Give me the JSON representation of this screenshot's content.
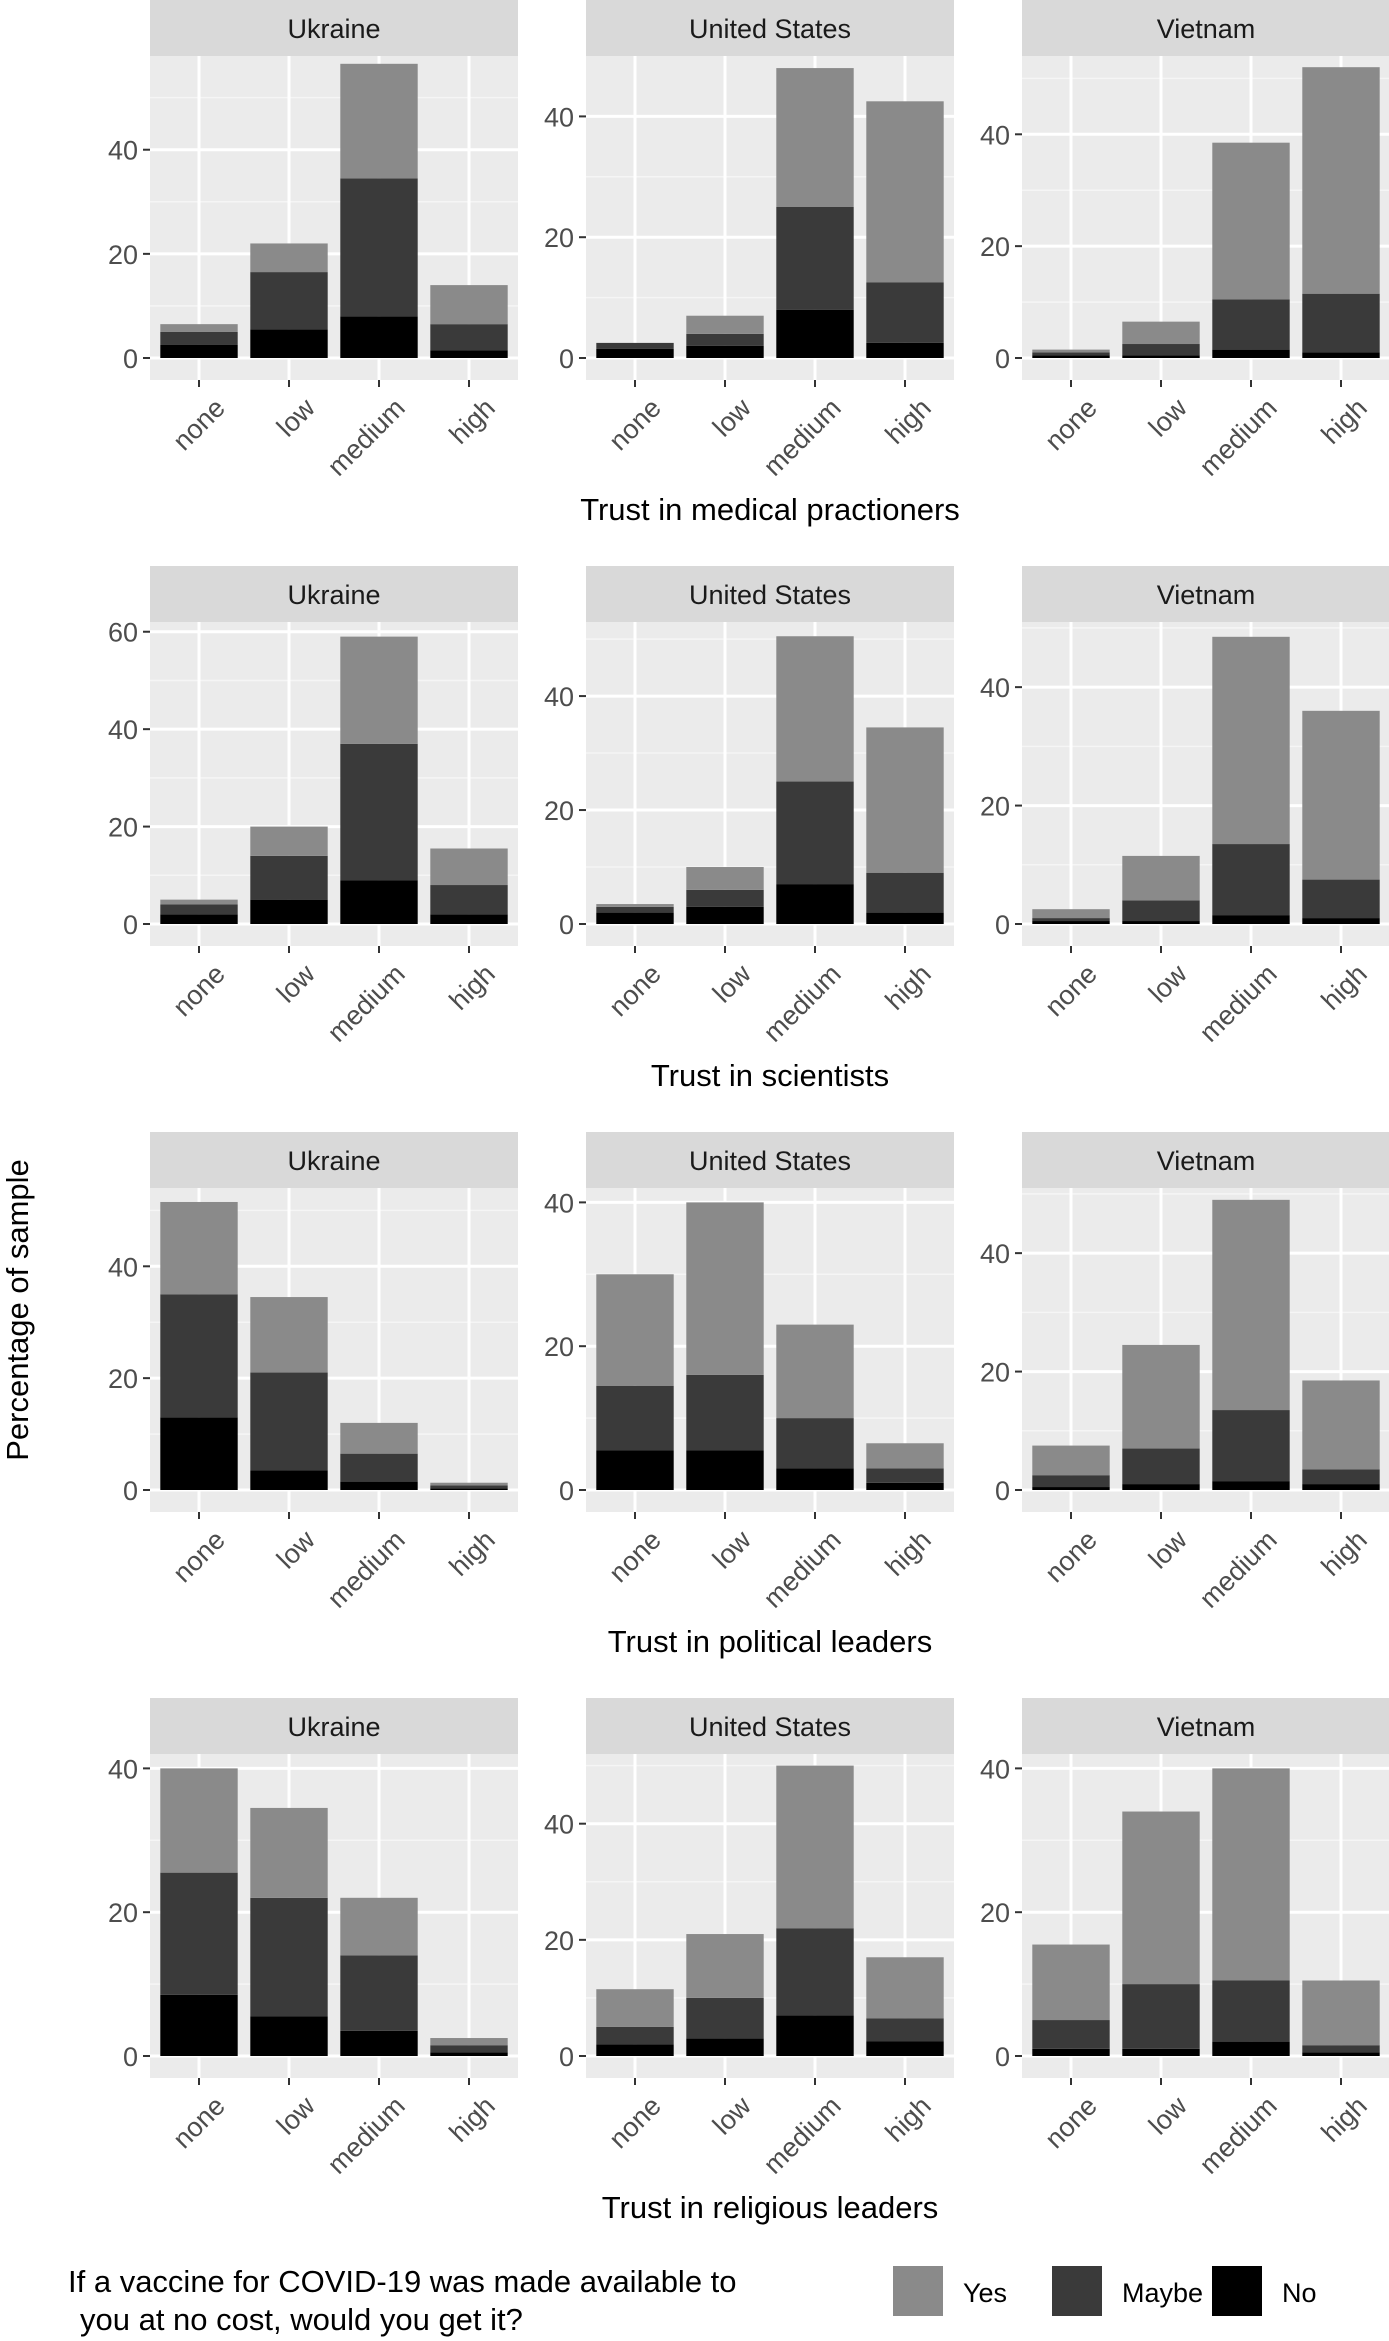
{
  "figure": {
    "ylabel": "Percentage of sample",
    "legend": {
      "title_line1": "If a vaccine for COVID-19 was made available to",
      "title_line2": "you at no cost, would you get it?",
      "position": "bottom",
      "items": [
        {
          "key": "yes",
          "label": "Yes",
          "color": "#8a8a8a"
        },
        {
          "key": "maybe",
          "label": "Maybe",
          "color": "#3a3a3a"
        },
        {
          "key": "no",
          "label": "No",
          "color": "#000000"
        }
      ]
    }
  },
  "chart_data": [
    {
      "type": "bar",
      "stacked": true,
      "xlabel": "Trust in medical practioners",
      "categories": [
        "none",
        "low",
        "medium",
        "high"
      ],
      "facets": [
        {
          "country": "Ukraine",
          "ylim": [
            0,
            58
          ],
          "yticks": [
            0,
            20,
            40
          ],
          "no": [
            2.5,
            5.5,
            8,
            1.5
          ],
          "maybe": [
            2.5,
            11,
            26.5,
            5
          ],
          "yes": [
            1.5,
            5.5,
            22,
            7.5
          ]
        },
        {
          "country": "United States",
          "ylim": [
            0,
            50
          ],
          "yticks": [
            0,
            20,
            40
          ],
          "no": [
            1.5,
            2,
            8,
            2.5
          ],
          "maybe": [
            1,
            2,
            17,
            10
          ],
          "yes": [
            0,
            3,
            23,
            30
          ]
        },
        {
          "country": "Vietnam",
          "ylim": [
            0,
            54
          ],
          "yticks": [
            0,
            20,
            40
          ],
          "no": [
            0.5,
            0.5,
            1.5,
            1
          ],
          "maybe": [
            0.5,
            2,
            9,
            10.5
          ],
          "yes": [
            0.5,
            4,
            28,
            40.5
          ]
        }
      ]
    },
    {
      "type": "bar",
      "stacked": true,
      "xlabel": "Trust in scientists",
      "categories": [
        "none",
        "low",
        "medium",
        "high"
      ],
      "facets": [
        {
          "country": "Ukraine",
          "ylim": [
            0,
            62
          ],
          "yticks": [
            0,
            20,
            40,
            60
          ],
          "no": [
            2,
            5,
            9,
            2
          ],
          "maybe": [
            2,
            9,
            28,
            6
          ],
          "yes": [
            1,
            6,
            22,
            7.5
          ]
        },
        {
          "country": "United States",
          "ylim": [
            0,
            53
          ],
          "yticks": [
            0,
            20,
            40
          ],
          "no": [
            2,
            3,
            7,
            2
          ],
          "maybe": [
            1,
            3,
            18,
            7
          ],
          "yes": [
            0.5,
            4,
            25.5,
            25.5
          ]
        },
        {
          "country": "Vietnam",
          "ylim": [
            0,
            51
          ],
          "yticks": [
            0,
            20,
            40
          ],
          "no": [
            0.5,
            0.5,
            1.5,
            1
          ],
          "maybe": [
            0.5,
            3.5,
            12,
            6.5
          ],
          "yes": [
            1.5,
            7.5,
            35,
            28.5
          ]
        }
      ]
    },
    {
      "type": "bar",
      "stacked": true,
      "xlabel": "Trust in political leaders",
      "categories": [
        "none",
        "low",
        "medium",
        "high"
      ],
      "facets": [
        {
          "country": "Ukraine",
          "ylim": [
            0,
            54
          ],
          "yticks": [
            0,
            20,
            40
          ],
          "no": [
            13,
            3.5,
            1.5,
            0.3
          ],
          "maybe": [
            22,
            17.5,
            5,
            0.5
          ],
          "yes": [
            16.5,
            13.5,
            5.5,
            0.5
          ]
        },
        {
          "country": "United States",
          "ylim": [
            0,
            42
          ],
          "yticks": [
            0,
            20,
            40
          ],
          "no": [
            5.5,
            5.5,
            3,
            1
          ],
          "maybe": [
            9,
            10.5,
            7,
            2
          ],
          "yes": [
            15.5,
            24,
            13,
            3.5
          ]
        },
        {
          "country": "Vietnam",
          "ylim": [
            0,
            51
          ],
          "yticks": [
            0,
            20,
            40
          ],
          "no": [
            0.5,
            1,
            1.5,
            1
          ],
          "maybe": [
            2,
            6,
            12,
            2.5
          ],
          "yes": [
            5,
            17.5,
            35.5,
            15
          ]
        }
      ]
    },
    {
      "type": "bar",
      "stacked": true,
      "xlabel": "Trust in religious leaders",
      "categories": [
        "none",
        "low",
        "medium",
        "high"
      ],
      "facets": [
        {
          "country": "Ukraine",
          "ylim": [
            0,
            42
          ],
          "yticks": [
            0,
            20,
            40
          ],
          "no": [
            8.5,
            5.5,
            3.5,
            0.5
          ],
          "maybe": [
            17,
            16.5,
            10.5,
            1
          ],
          "yes": [
            14.5,
            12.5,
            8,
            1
          ]
        },
        {
          "country": "United States",
          "ylim": [
            0,
            52
          ],
          "yticks": [
            0,
            20,
            40
          ],
          "no": [
            2,
            3,
            7,
            2.5
          ],
          "maybe": [
            3,
            7,
            15,
            4
          ],
          "yes": [
            6.5,
            11,
            28,
            10.5
          ]
        },
        {
          "country": "Vietnam",
          "ylim": [
            0,
            42
          ],
          "yticks": [
            0,
            20,
            40
          ],
          "no": [
            1,
            1,
            2,
            0.5
          ],
          "maybe": [
            4,
            9,
            8.5,
            1
          ],
          "yes": [
            10.5,
            24,
            29.5,
            9
          ]
        }
      ]
    }
  ]
}
